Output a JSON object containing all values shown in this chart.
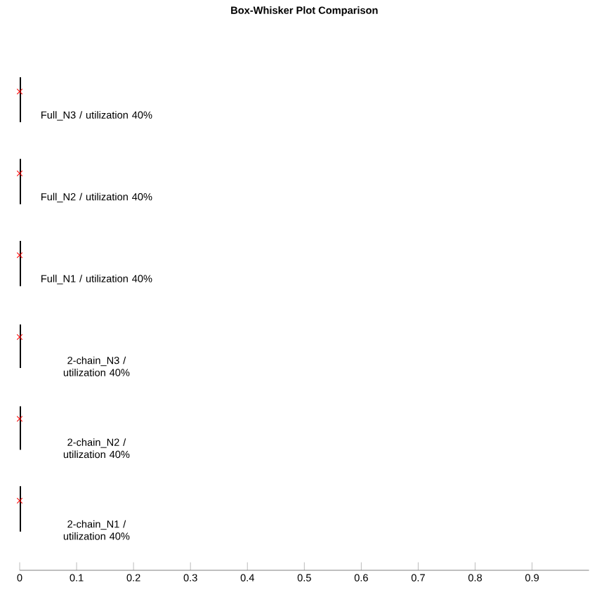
{
  "chart_data": {
    "type": "box",
    "title": "Box-Whisker Plot Comparison",
    "categories": [
      "Full_N3 / utilization 40%",
      "Full_N2 / utilization 40%",
      "Full_N1 / utilization 40%",
      "2-chain_N3 / utilization 40%",
      "2-chain_N2 / utilization 40%",
      "2-chain_N1 / utilization 40%"
    ],
    "orientation": "horizontal",
    "boxes": [
      {
        "low": 0,
        "q1": 0,
        "median": 0,
        "q3": 0,
        "high": 0,
        "mean": 0
      },
      {
        "low": 0,
        "q1": 0,
        "median": 0,
        "q3": 0,
        "high": 0,
        "mean": 0
      },
      {
        "low": 0,
        "q1": 0,
        "median": 0,
        "q3": 0,
        "high": 0,
        "mean": 0
      },
      {
        "low": 0,
        "q1": 0,
        "median": 0,
        "q3": 0,
        "high": 0,
        "mean": 0
      },
      {
        "low": 0,
        "q1": 0,
        "median": 0,
        "q3": 0,
        "high": 0,
        "mean": 0
      },
      {
        "low": 0,
        "q1": 0,
        "median": 0,
        "q3": 0,
        "high": 0,
        "mean": 0
      }
    ],
    "xlim": [
      0,
      1
    ],
    "xticks": [
      0,
      0.1,
      0.2,
      0.3,
      0.4,
      0.5,
      0.6,
      0.7,
      0.8,
      0.9
    ],
    "grid": false
  }
}
